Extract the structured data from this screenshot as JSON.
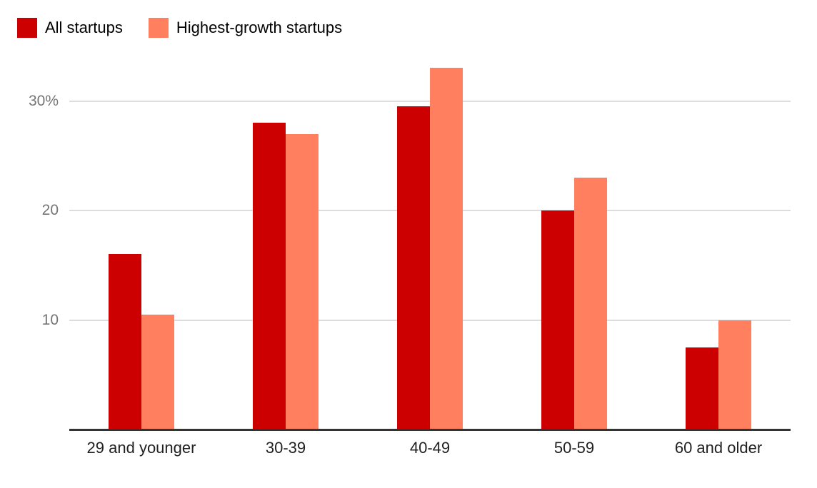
{
  "chart_data": {
    "type": "bar",
    "title": "",
    "xlabel": "",
    "ylabel": "",
    "unit": "%",
    "categories": [
      "29 and younger",
      "30-39",
      "40-49",
      "50-59",
      "60 and older"
    ],
    "series": [
      {
        "name": "All startups",
        "color": "#cc0000",
        "values": [
          16,
          28,
          29.5,
          20,
          7.5
        ]
      },
      {
        "name": "Highest-growth startups",
        "color": "#ff7f5e",
        "values": [
          10.5,
          27,
          33,
          23,
          10
        ]
      }
    ],
    "yticks": [
      {
        "value": 10,
        "label": "10"
      },
      {
        "value": 20,
        "label": "20"
      },
      {
        "value": 30,
        "label": "30%"
      }
    ],
    "ylim": [
      0,
      35
    ],
    "grid": true,
    "legend_position": "top-left",
    "colors": {
      "background": "#ffffff",
      "gridline": "#dddddd",
      "axis_line": "#333333",
      "tick_label": "#757575",
      "category_label": "#212121"
    }
  }
}
